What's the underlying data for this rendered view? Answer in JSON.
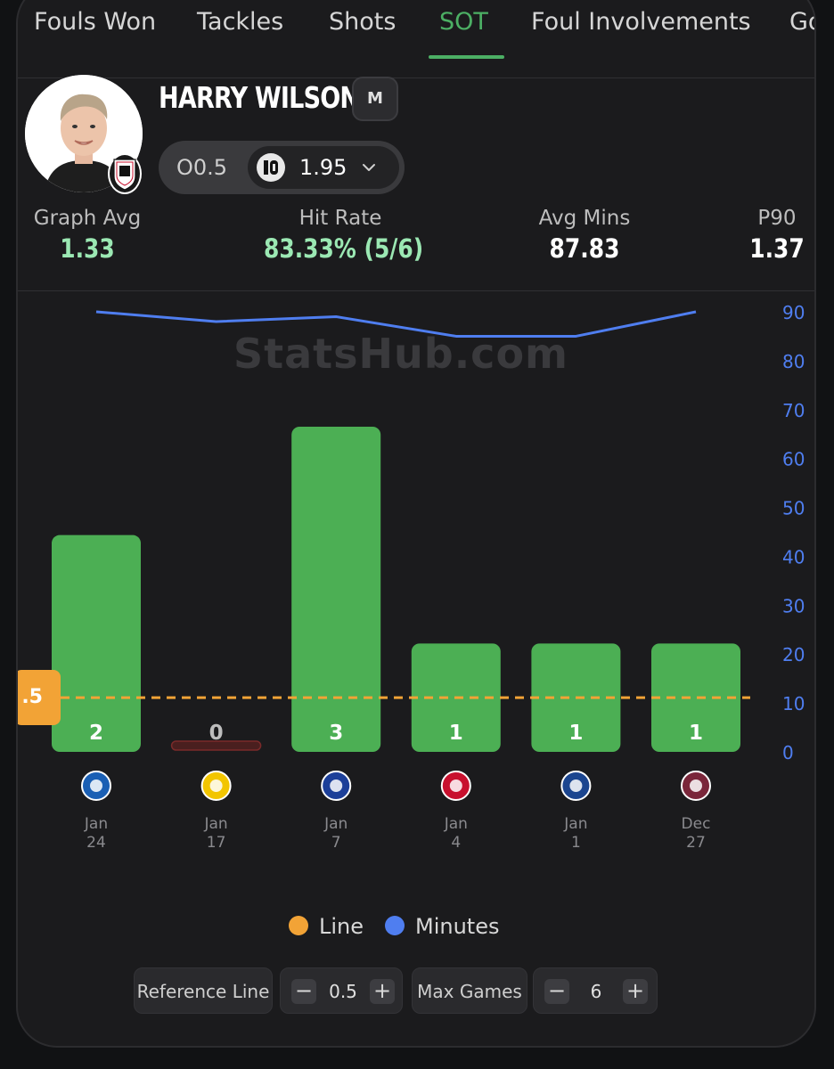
{
  "tabs": [
    {
      "label": "Fouls Won",
      "active": false
    },
    {
      "label": "Tackles",
      "active": false
    },
    {
      "label": "Shots",
      "active": false
    },
    {
      "label": "SOT",
      "active": true
    },
    {
      "label": "Foul Involvements",
      "active": false
    },
    {
      "label": "Go",
      "active": false
    }
  ],
  "player": {
    "name": "HARRY WILSON",
    "position": "M",
    "line_label": "O0.5",
    "odds": "1.95"
  },
  "stats": [
    {
      "label": "Graph Avg",
      "value": "1.33",
      "tone": "green"
    },
    {
      "label": "Hit Rate",
      "value": "83.33% (5/6)",
      "tone": "green"
    },
    {
      "label": "Avg Mins",
      "value": "87.83",
      "tone": "white"
    },
    {
      "label": "P90",
      "value": "1.37",
      "tone": "white"
    }
  ],
  "watermark": "StatsHub.com",
  "chart_data": {
    "type": "bar",
    "categories": [
      "Jan 24",
      "Jan 17",
      "Jan 7",
      "Jan 4",
      "Jan 1",
      "Dec 27"
    ],
    "series": [
      {
        "name": "SOT",
        "values": [
          2,
          0,
          3,
          1,
          1,
          1
        ],
        "color": "#4caf54"
      },
      {
        "name": "Minutes",
        "values": [
          90,
          88,
          89,
          85,
          85,
          90
        ],
        "color": "#4f7ef0"
      }
    ],
    "reference_line": {
      "name": "Line",
      "value": 0.5,
      "label": ".5",
      "color": "#f2a336"
    },
    "opponents": [
      "Brighton",
      "Leeds",
      "Chelsea",
      "Liverpool",
      "Crystal Palace",
      "West Ham"
    ],
    "y2_ticks": [
      "90",
      "80",
      "70",
      "60",
      "50",
      "40",
      "30",
      "20",
      "10",
      "0"
    ],
    "y2lim": [
      0,
      90
    ],
    "legend_position": "bottom",
    "grid": false
  },
  "legend": [
    {
      "label": "Line",
      "color": "#f2a336"
    },
    {
      "label": "Minutes",
      "color": "#4f7ef0"
    }
  ],
  "controls": {
    "reference_label": "Reference Line",
    "reference_value": "0.5",
    "max_games_label": "Max Games",
    "max_games_value": "6",
    "minus": "−",
    "plus": "+"
  }
}
